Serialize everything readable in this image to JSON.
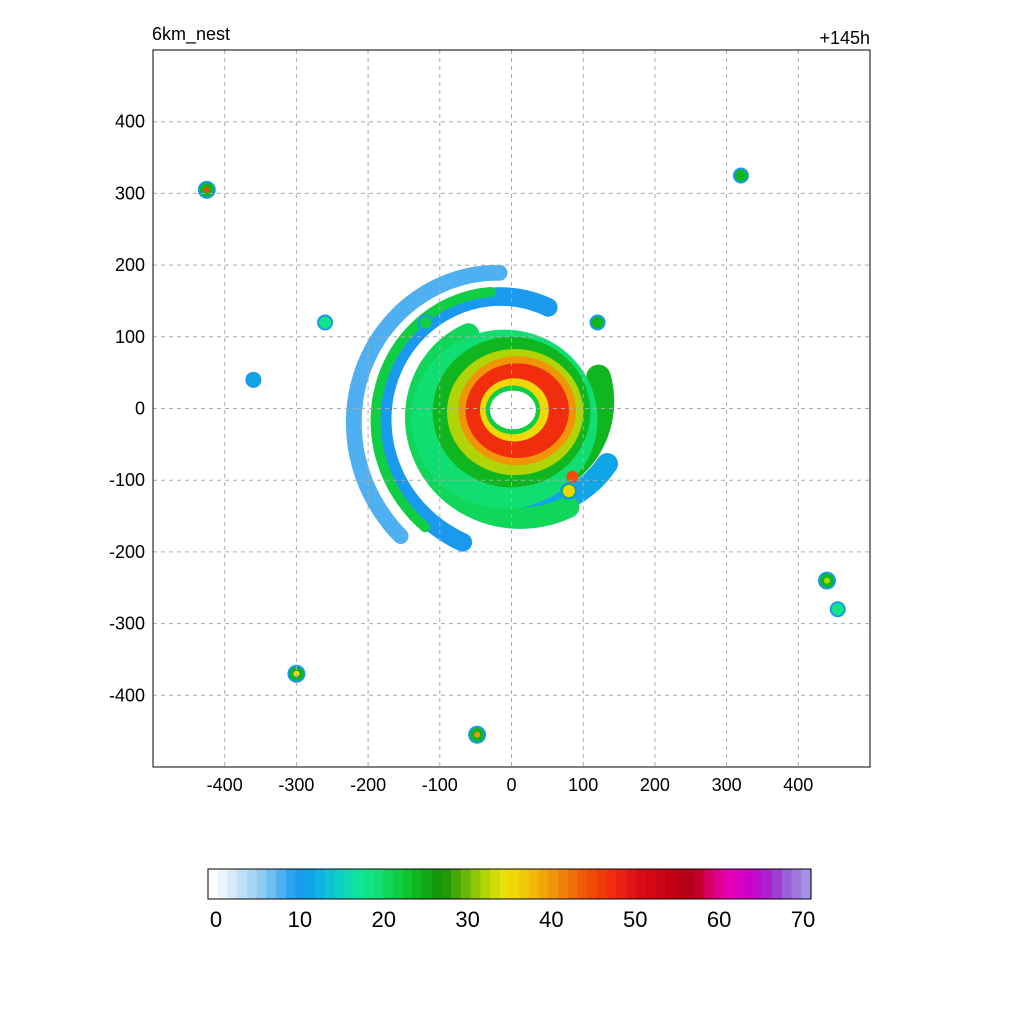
{
  "title_left": "6km_nest",
  "title_right": "+145h",
  "chart_data": {
    "type": "heatmap",
    "title": "6km_nest",
    "subtitle": "+145h",
    "xlim": [
      -500,
      500
    ],
    "ylim": [
      -500,
      500
    ],
    "xticks": [
      -400,
      -300,
      -200,
      -100,
      0,
      100,
      200,
      300,
      400
    ],
    "yticks": [
      400,
      300,
      200,
      100,
      0,
      -100,
      -200,
      -300,
      -400
    ],
    "grid": true,
    "colorbar": {
      "min": 0,
      "max": 70,
      "ticks": [
        0,
        10,
        20,
        30,
        40,
        50,
        60,
        70
      ],
      "colors": [
        "#ffffff",
        "#eaf4fb",
        "#d4eaf8",
        "#bde0f6",
        "#a6d6f4",
        "#8fcaf3",
        "#6fbdf2",
        "#4fb0f1",
        "#2fa3f0",
        "#1a9aee",
        "#10a5e6",
        "#10b4e0",
        "#10c2d6",
        "#10cfc6",
        "#10dbb0",
        "#10e39a",
        "#10e486",
        "#10de70",
        "#10d65a",
        "#10ce44",
        "#10c430",
        "#10b620",
        "#10a814",
        "#109a0a",
        "#229a08",
        "#45a808",
        "#68b808",
        "#8cc808",
        "#b0d408",
        "#d0dc08",
        "#e8e008",
        "#f0d808",
        "#f0c808",
        "#f0b808",
        "#f0a608",
        "#f09408",
        "#f08008",
        "#f06e08",
        "#f05a08",
        "#f04a08",
        "#f03c0a",
        "#f02e0e",
        "#ec2012",
        "#e41414",
        "#dc0c14",
        "#d40814",
        "#cc0414",
        "#c40014",
        "#bc0014",
        "#b40018",
        "#c40030",
        "#d40060",
        "#e00090",
        "#e400b0",
        "#dc00c0",
        "#cc00c8",
        "#bc10cc",
        "#ac20d0",
        "#9c40d4",
        "#9c60dc",
        "#a078e0",
        "#a490e4"
      ]
    },
    "cells": [
      {
        "x": 0,
        "y": 0,
        "v": 41
      },
      {
        "x": 120,
        "y": 120,
        "v": 24
      },
      {
        "x": -120,
        "y": 120,
        "v": 22
      },
      {
        "x": -360,
        "y": 40,
        "v": 12
      },
      {
        "x": -260,
        "y": 120,
        "v": 18
      },
      {
        "x": -425,
        "y": 305,
        "v": 45
      },
      {
        "x": -300,
        "y": -370,
        "v": 35
      },
      {
        "x": -48,
        "y": -455,
        "v": 40
      },
      {
        "x": 320,
        "y": 325,
        "v": 25
      },
      {
        "x": 455,
        "y": -280,
        "v": 18
      },
      {
        "x": 440,
        "y": -240,
        "v": 32
      },
      {
        "x": 85,
        "y": -95,
        "v": 45
      },
      {
        "x": 80,
        "y": -115,
        "v": 35
      }
    ]
  }
}
